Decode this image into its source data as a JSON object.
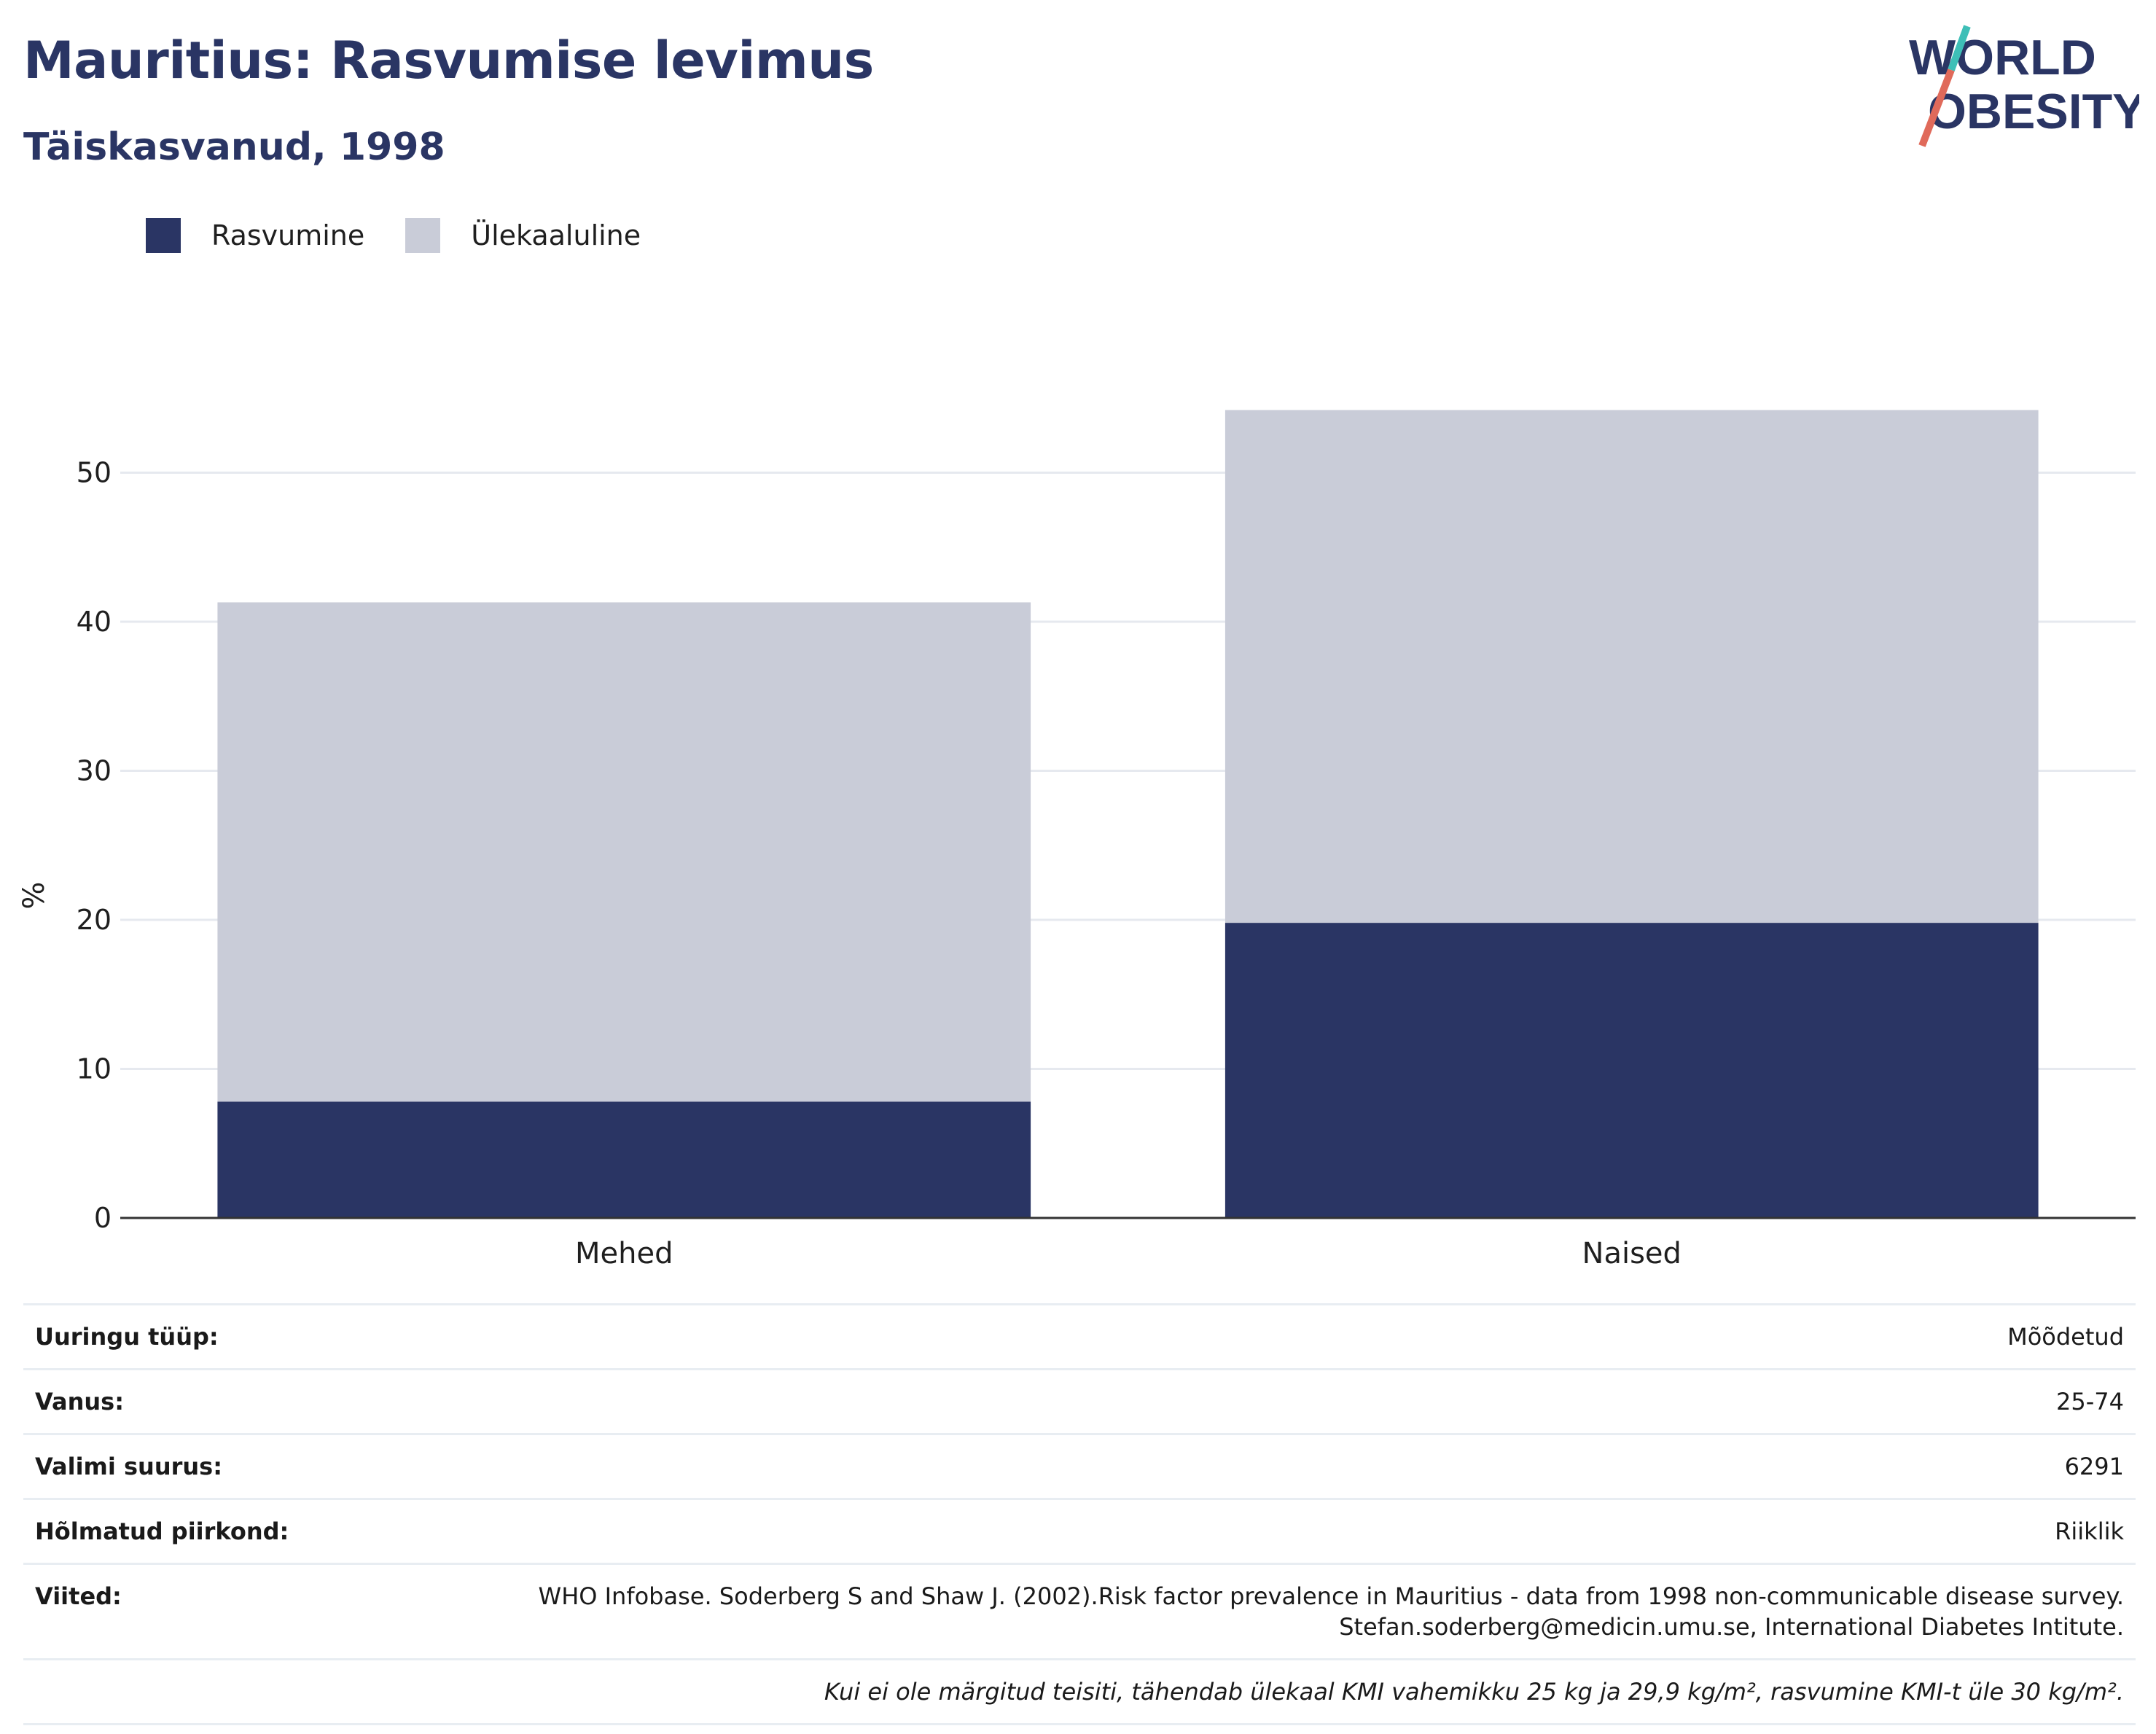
{
  "header": {
    "title": "Mauritius: Rasvumise levimus",
    "subtitle": "Täiskasvanud, 1998"
  },
  "logo": {
    "line1": "WORLD",
    "line2": "OBESITY",
    "colors": [
      "#2a3564",
      "#3ebfb7",
      "#e06a5a"
    ]
  },
  "chart_data": {
    "type": "bar",
    "stacked": true,
    "categories": [
      "Mehed",
      "Naised"
    ],
    "series": [
      {
        "name": "Rasvumine",
        "values": [
          7.8,
          19.8
        ],
        "color": "#2a3564"
      },
      {
        "name": "Ülekaaluline",
        "values": [
          33.5,
          34.4
        ],
        "color": "#c9ccd8"
      }
    ],
    "ylabel": "%",
    "ylim": [
      0,
      55
    ],
    "yticks": [
      0,
      10,
      20,
      30,
      40,
      50
    ],
    "grid": true,
    "legend_position": "top-left"
  },
  "info": {
    "rows": [
      {
        "label": "Uuringu tüüp:",
        "value": "Mõõdetud"
      },
      {
        "label": "Vanus:",
        "value": "25-74"
      },
      {
        "label": "Valimi suurus:",
        "value": "6291"
      },
      {
        "label": "Hõlmatud piirkond:",
        "value": "Riiklik"
      },
      {
        "label": "Viited:",
        "value_line1": "WHO Infobase. Soderberg S and Shaw J. (2002).Risk factor prevalence in Mauritius - data from 1998 non-communicable disease survey.",
        "value_line2": "Stefan.soderberg@medicin.umu.se, International Diabetes Intitute."
      }
    ],
    "note": "Kui ei ole märgitud teisiti, tähendab ülekaal KMI vahemikku 25 kg ja 29,9 kg/m², rasvumine KMI-t üle 30 kg/m²."
  }
}
